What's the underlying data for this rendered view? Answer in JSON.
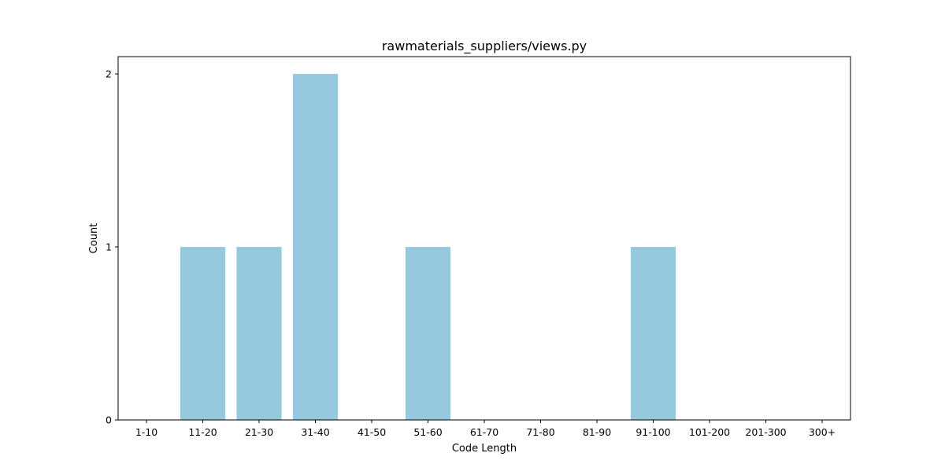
{
  "chart_data": {
    "type": "bar",
    "title": "rawmaterials_suppliers/views.py",
    "xlabel": "Code Length",
    "ylabel": "Count",
    "categories": [
      "1-10",
      "11-20",
      "21-30",
      "31-40",
      "41-50",
      "51-60",
      "61-70",
      "71-80",
      "81-90",
      "91-100",
      "101-200",
      "201-300",
      "300+"
    ],
    "values": [
      0,
      1,
      1,
      2,
      0,
      1,
      0,
      0,
      0,
      1,
      0,
      0,
      0
    ],
    "yticks": [
      "0",
      "1",
      "2"
    ],
    "ylim": [
      0,
      2.1
    ],
    "grid": false,
    "colors": {
      "bar": "#96c9de",
      "axis": "#000000"
    }
  }
}
